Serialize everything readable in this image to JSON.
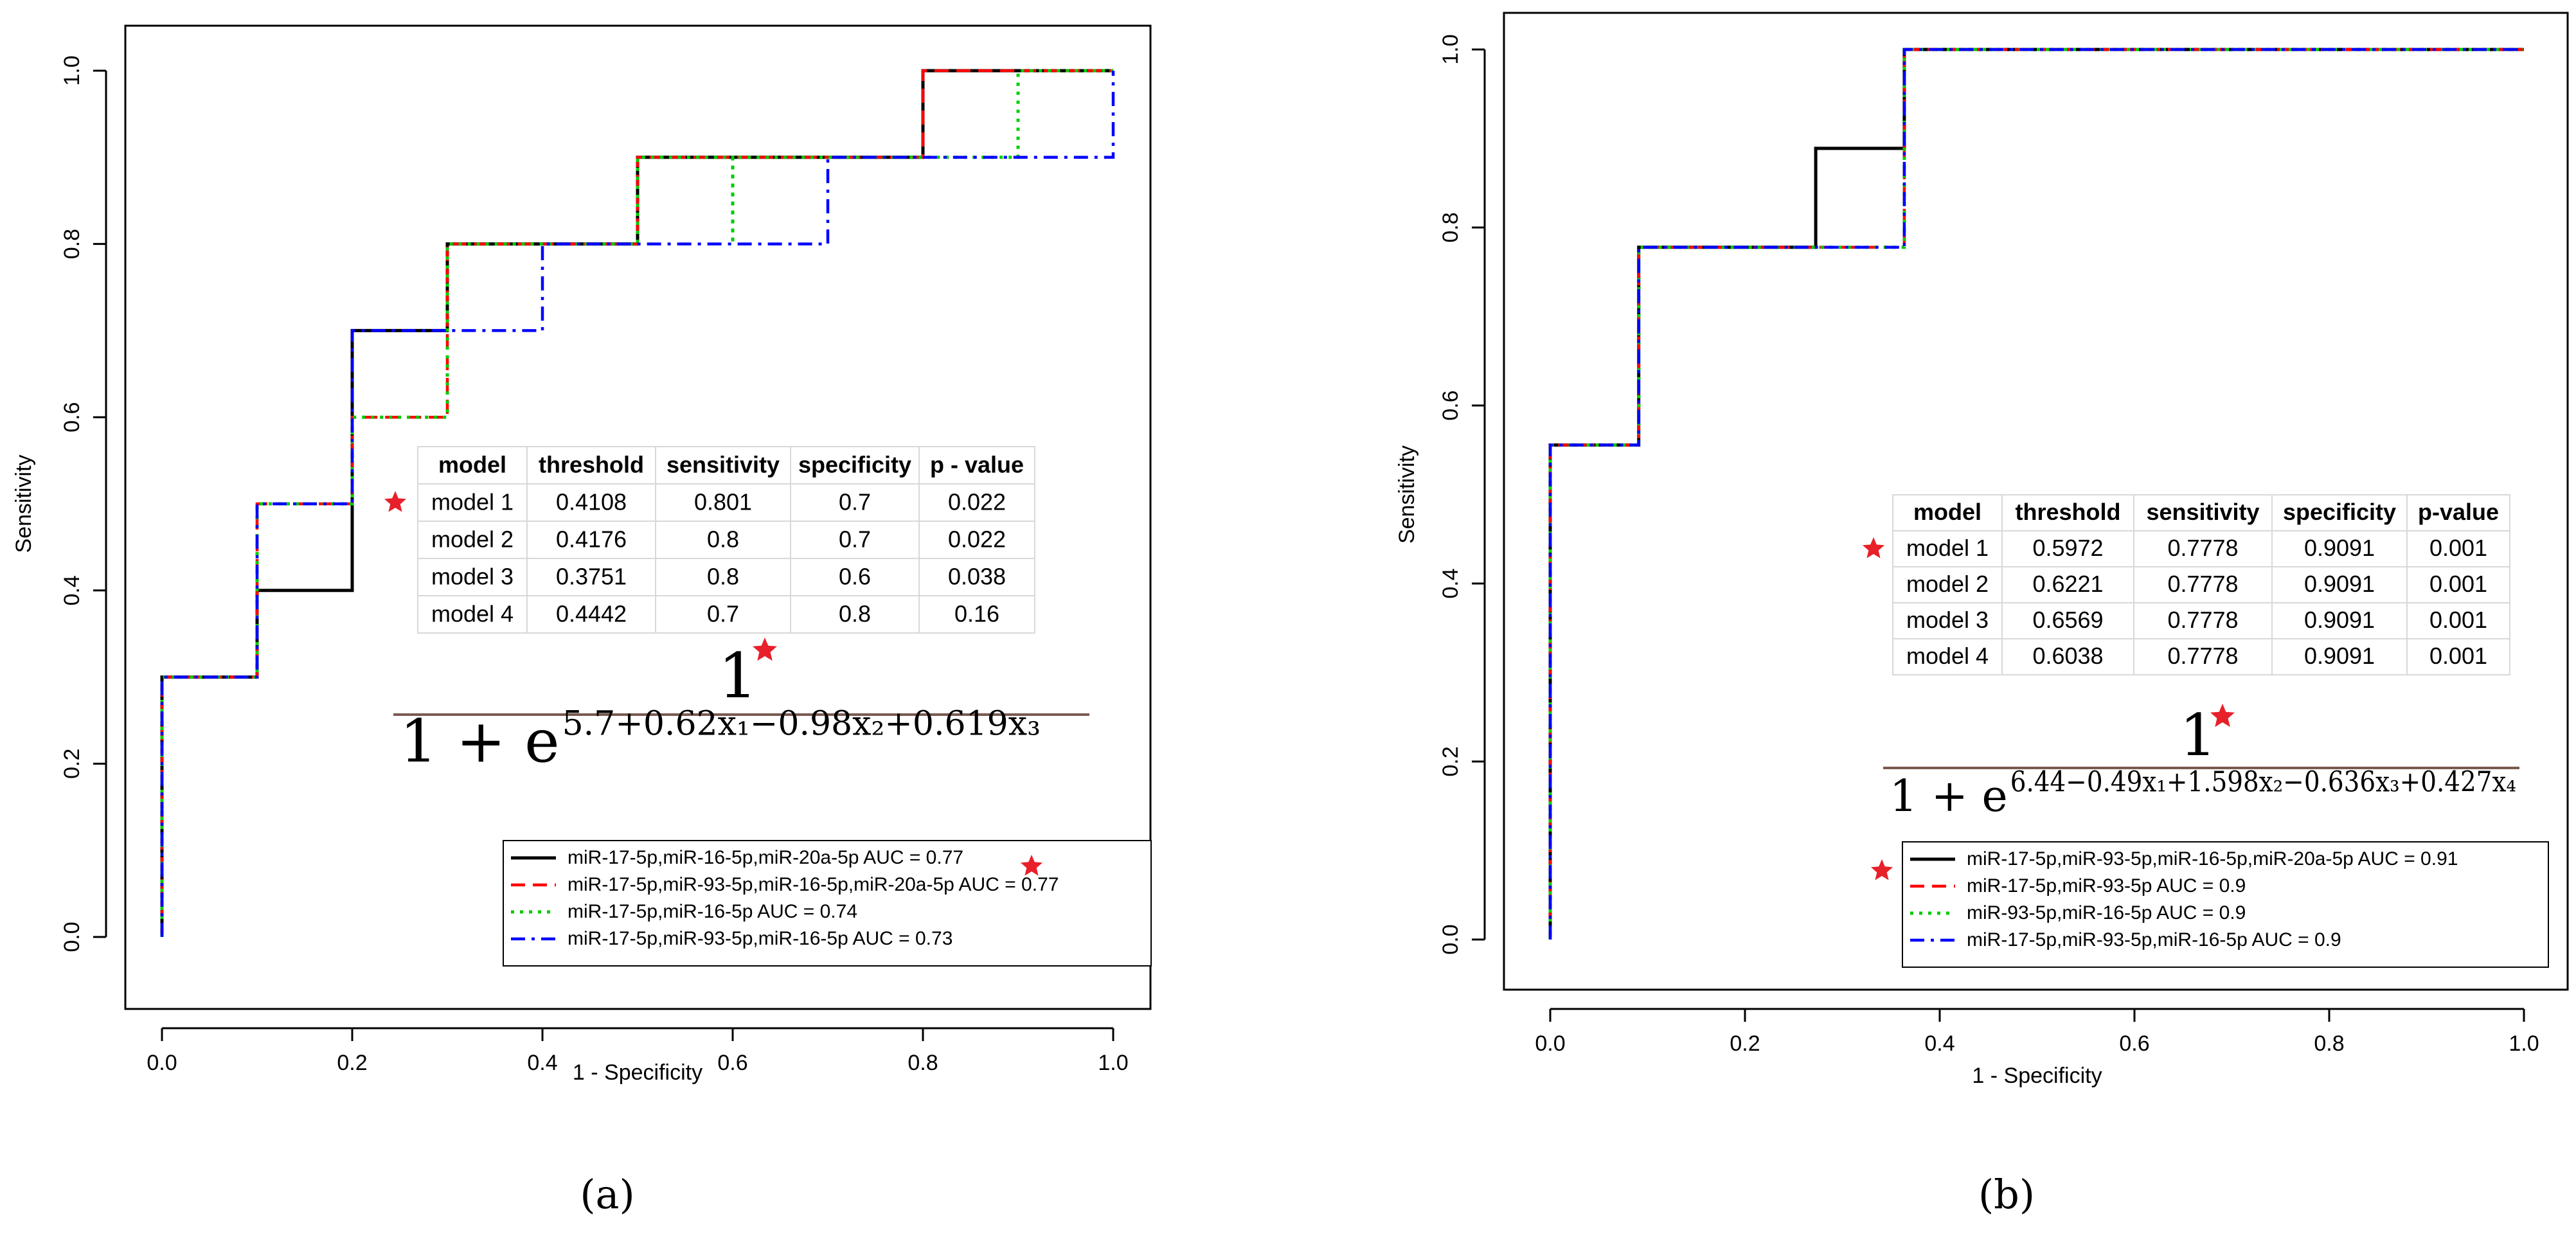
{
  "chart_data": [
    {
      "type": "line",
      "panel_label": "(a)",
      "xlabel": "1 - Specificity",
      "ylabel": "Sensitivity",
      "xlim": [
        0,
        1
      ],
      "ylim": [
        0,
        1
      ],
      "xticks": [
        "0.0",
        "0.2",
        "0.4",
        "0.6",
        "0.8",
        "1.0"
      ],
      "yticks": [
        "0.0",
        "0.2",
        "0.4",
        "0.6",
        "0.8",
        "1.0"
      ],
      "grid": false,
      "legend_position": "bottom-right",
      "series": [
        {
          "label": "miR-17-5p,miR-16-5p,miR-20a-5p AUC =  0.77",
          "color": "#000000",
          "style": "solid",
          "starred": true,
          "points": [
            [
              0,
              0
            ],
            [
              0,
              0.3
            ],
            [
              0.1,
              0.3
            ],
            [
              0.1,
              0.4
            ],
            [
              0.2,
              0.4
            ],
            [
              0.2,
              0.7
            ],
            [
              0.3,
              0.7
            ],
            [
              0.3,
              0.8
            ],
            [
              0.5,
              0.8
            ],
            [
              0.5,
              0.9
            ],
            [
              0.8,
              0.9
            ],
            [
              0.8,
              1.0
            ],
            [
              1.0,
              1.0
            ]
          ]
        },
        {
          "label": "miR-17-5p,miR-93-5p,miR-16-5p,miR-20a-5p AUC =  0.77",
          "color": "#ff0000",
          "style": "dashed",
          "starred": false,
          "points": [
            [
              0,
              0
            ],
            [
              0,
              0.3
            ],
            [
              0.1,
              0.3
            ],
            [
              0.1,
              0.5
            ],
            [
              0.2,
              0.5
            ],
            [
              0.2,
              0.6
            ],
            [
              0.3,
              0.6
            ],
            [
              0.3,
              0.8
            ],
            [
              0.5,
              0.8
            ],
            [
              0.5,
              0.9
            ],
            [
              0.8,
              0.9
            ],
            [
              0.8,
              1.0
            ],
            [
              1.0,
              1.0
            ]
          ]
        },
        {
          "label": "miR-17-5p,miR-16-5p AUC =  0.74",
          "color": "#00cc00",
          "style": "dotted",
          "starred": false,
          "points": [
            [
              0,
              0
            ],
            [
              0,
              0.3
            ],
            [
              0.1,
              0.3
            ],
            [
              0.1,
              0.5
            ],
            [
              0.2,
              0.5
            ],
            [
              0.2,
              0.6
            ],
            [
              0.3,
              0.6
            ],
            [
              0.3,
              0.8
            ],
            [
              0.5,
              0.8
            ],
            [
              0.5,
              0.9
            ],
            [
              0.6,
              0.9
            ],
            [
              0.6,
              0.8
            ],
            [
              0.6,
              0.9
            ],
            [
              0.9,
              0.9
            ],
            [
              0.9,
              1.0
            ],
            [
              1.0,
              1.0
            ]
          ]
        },
        {
          "label": "miR-17-5p,miR-93-5p,miR-16-5p AUC =  0.73",
          "color": "#0000ff",
          "style": "dashdot",
          "starred": false,
          "points": [
            [
              0,
              0
            ],
            [
              0,
              0.3
            ],
            [
              0.1,
              0.3
            ],
            [
              0.1,
              0.5
            ],
            [
              0.2,
              0.5
            ],
            [
              0.2,
              0.7
            ],
            [
              0.3,
              0.7
            ],
            [
              0.3,
              0.7
            ],
            [
              0.4,
              0.7
            ],
            [
              0.4,
              0.8
            ],
            [
              0.7,
              0.8
            ],
            [
              0.7,
              0.9
            ],
            [
              1.0,
              0.9
            ],
            [
              1.0,
              1.0
            ]
          ]
        }
      ],
      "table": {
        "headers": [
          "model",
          "threshold",
          "sensitivity",
          "specificity",
          "p - value"
        ],
        "rows": [
          [
            "model 1",
            "0.4108",
            "0.801",
            "0.7",
            "0.022"
          ],
          [
            "model 2",
            "0.4176",
            "0.8",
            "0.7",
            "0.022"
          ],
          [
            "model 3",
            "0.3751",
            "0.8",
            "0.6",
            "0.038"
          ],
          [
            "model 4",
            "0.4442",
            "0.7",
            "0.8",
            "0.16"
          ]
        ],
        "starred_row": 0
      },
      "formula": {
        "numerator": "1",
        "denominator_base": "1 + e",
        "exponent": "5.7+0.62x₁−0.98x₂+0.619x₃"
      }
    },
    {
      "type": "line",
      "panel_label": "(b)",
      "xlabel": "1 - Specificity",
      "ylabel": "Sensitivity",
      "xlim": [
        0,
        1
      ],
      "ylim": [
        0,
        1
      ],
      "xticks": [
        "0.0",
        "0.2",
        "0.4",
        "0.6",
        "0.8",
        "1.0"
      ],
      "yticks": [
        "0.0",
        "0.2",
        "0.4",
        "0.6",
        "0.8",
        "1.0"
      ],
      "grid": false,
      "legend_position": "bottom-right",
      "series": [
        {
          "label": "miR-17-5p,miR-93-5p,miR-16-5p,miR-20a-5p AUC =  0.91",
          "color": "#000000",
          "style": "solid",
          "starred": true,
          "points": [
            [
              0,
              0
            ],
            [
              0,
              0.5556
            ],
            [
              0.0909,
              0.5556
            ],
            [
              0.0909,
              0.7778
            ],
            [
              0.2727,
              0.7778
            ],
            [
              0.2727,
              0.8889
            ],
            [
              0.3636,
              0.8889
            ],
            [
              0.3636,
              1.0
            ],
            [
              1.0,
              1.0
            ]
          ]
        },
        {
          "label": "miR-17-5p,miR-93-5p AUC =  0.9",
          "color": "#ff0000",
          "style": "dashed",
          "starred": false,
          "points": [
            [
              0,
              0
            ],
            [
              0,
              0.5556
            ],
            [
              0.0909,
              0.5556
            ],
            [
              0.0909,
              0.7778
            ],
            [
              0.3636,
              0.7778
            ],
            [
              0.3636,
              1.0
            ],
            [
              1.0,
              1.0
            ]
          ]
        },
        {
          "label": "miR-93-5p,miR-16-5p AUC =  0.9",
          "color": "#00cc00",
          "style": "dotted",
          "starred": false,
          "points": [
            [
              0,
              0
            ],
            [
              0,
              0.5556
            ],
            [
              0.0909,
              0.5556
            ],
            [
              0.0909,
              0.7778
            ],
            [
              0.3636,
              0.7778
            ],
            [
              0.3636,
              1.0
            ],
            [
              1.0,
              1.0
            ]
          ]
        },
        {
          "label": "miR-17-5p,miR-93-5p,miR-16-5p AUC =  0.9",
          "color": "#0000ff",
          "style": "dashdot",
          "starred": false,
          "points": [
            [
              0,
              0
            ],
            [
              0,
              0.5556
            ],
            [
              0.0909,
              0.5556
            ],
            [
              0.0909,
              0.7778
            ],
            [
              0.3636,
              0.7778
            ],
            [
              0.3636,
              1.0
            ],
            [
              1.0,
              1.0
            ]
          ]
        }
      ],
      "table": {
        "headers": [
          "model",
          "threshold",
          "sensitivity",
          "specificity",
          "p-value"
        ],
        "rows": [
          [
            "model 1",
            "0.5972",
            "0.7778",
            "0.9091",
            "0.001"
          ],
          [
            "model 2",
            "0.6221",
            "0.7778",
            "0.9091",
            "0.001"
          ],
          [
            "model 3",
            "0.6569",
            "0.7778",
            "0.9091",
            "0.001"
          ],
          [
            "model 4",
            "0.6038",
            "0.7778",
            "0.9091",
            "0.001"
          ]
        ],
        "starred_row": 0
      },
      "formula": {
        "numerator": "1",
        "denominator_base": "1 + e",
        "exponent": "6.44−0.49x₁+1.598x₂−0.636x₃+0.427x₄"
      }
    }
  ],
  "colors": {
    "star": "#e8202a",
    "axis": "#000000"
  }
}
